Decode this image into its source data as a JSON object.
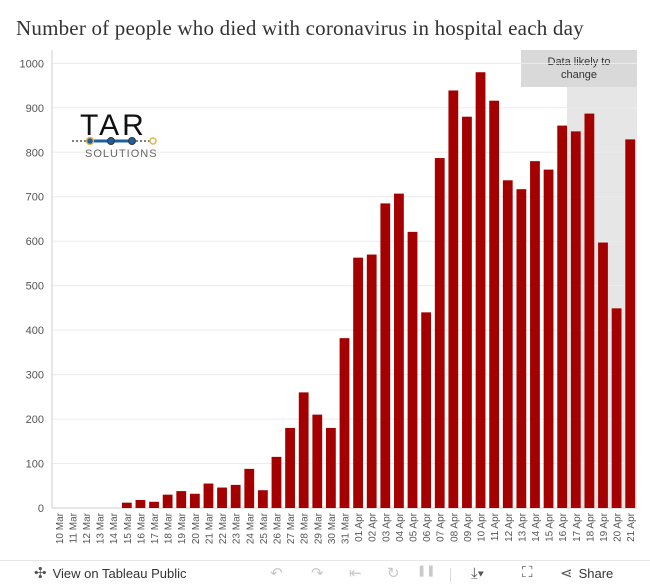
{
  "chart_data": {
    "type": "bar",
    "title": "Number of people who died with coronavirus in hospital each day",
    "xlabel": "",
    "ylabel": "",
    "ylim": [
      0,
      1030
    ],
    "yticks": [
      0,
      100,
      200,
      300,
      400,
      500,
      600,
      700,
      800,
      900,
      1000
    ],
    "bar_color": "#a50000",
    "categories": [
      "10 Mar",
      "11 Mar",
      "12 Mar",
      "13 Mar",
      "14 Mar",
      "15 Mar",
      "16 Mar",
      "17 Mar",
      "18 Mar",
      "19 Mar",
      "20 Mar",
      "21 Mar",
      "22 Mar",
      "23 Mar",
      "24 Mar",
      "25 Mar",
      "26 Mar",
      "27 Mar",
      "28 Mar",
      "29 Mar",
      "30 Mar",
      "31 Mar",
      "01 Apr",
      "02 Apr",
      "03 Apr",
      "04 Apr",
      "05 Apr",
      "06 Apr",
      "07 Apr",
      "08 Apr",
      "09 Apr",
      "10 Apr",
      "11 Apr",
      "12 Apr",
      "13 Apr",
      "14 Apr",
      "15 Apr",
      "16 Apr",
      "17 Apr",
      "18 Apr",
      "19 Apr",
      "20 Apr",
      "21 Apr"
    ],
    "values": [
      0,
      0,
      0,
      0,
      0,
      12,
      18,
      14,
      30,
      38,
      32,
      55,
      46,
      52,
      88,
      40,
      115,
      180,
      260,
      210,
      180,
      382,
      563,
      570,
      685,
      707,
      621,
      440,
      787,
      939,
      880,
      980,
      916,
      737,
      717,
      780,
      761,
      860,
      847,
      887,
      597,
      449,
      829
    ],
    "shaded_region": {
      "from": "17 Apr",
      "to": "21 Apr",
      "label": "Data likely to change",
      "color": "#e6e6e6"
    }
  },
  "logo": {
    "main": "TAR",
    "sub": "SOLUTIONS",
    "accent": "#1f5fa0",
    "dot": "#e0b64a"
  },
  "footer": {
    "view_label": "View on Tableau Public",
    "share_label": "Share",
    "icons": [
      "tableau-icon",
      "undo-icon",
      "redo-icon",
      "revert-icon",
      "refresh-icon",
      "pause-icon",
      "download-icon",
      "fullscreen-icon",
      "share-icon"
    ]
  }
}
